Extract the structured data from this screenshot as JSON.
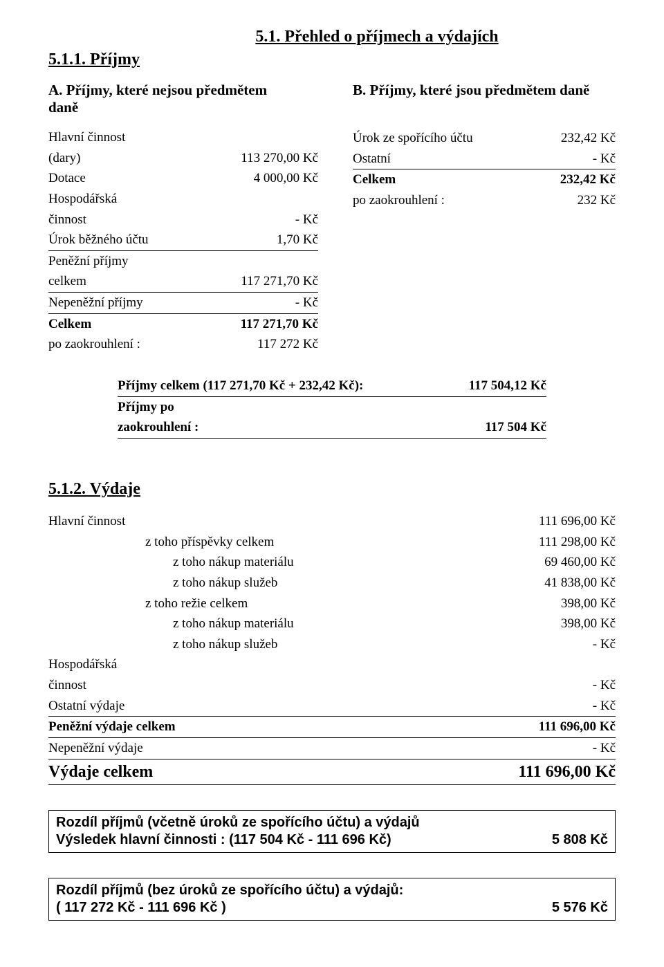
{
  "title": "5.1. Přehled o příjmech a výdajích",
  "prijmy": {
    "heading": "5.1.1. Příjmy",
    "sectionA": {
      "head_line1": "A. Příjmy, které nejsou předmětem",
      "head_line2": "daně",
      "rows": [
        {
          "label": "Hlavní činnost",
          "val": ""
        },
        {
          "label": "(dary)",
          "val": "113 270,00 Kč",
          "underline": false
        },
        {
          "label": "Dotace",
          "val": "4 000,00 Kč",
          "underline": false
        },
        {
          "label": "Hospodářská",
          "val": ""
        },
        {
          "label": "činnost",
          "val": "- Kč",
          "underline": false
        },
        {
          "label": "Úrok běžného účtu",
          "val": "1,70 Kč",
          "underline": true
        },
        {
          "label": "Peněžní příjmy",
          "val": ""
        },
        {
          "label": "celkem",
          "val": "117 271,70 Kč",
          "underline": true
        },
        {
          "label": "Nepeněžní příjmy",
          "val": "- Kč",
          "underline": true
        },
        {
          "label": "Celkem",
          "val": "117 271,70 Kč",
          "bold": true,
          "underline": false
        },
        {
          "label": "po zaokrouhlení :",
          "val": "117 272 Kč",
          "underline": false
        }
      ]
    },
    "sectionB": {
      "head": "B. Příjmy, které jsou předmětem daně",
      "rows": [
        {
          "label": "Úrok ze spořícího účtu",
          "val": "232,42 Kč",
          "underline": false
        },
        {
          "label": "Ostatní",
          "val": "- Kč",
          "underline": true
        },
        {
          "label": "Celkem",
          "val": "232,42 Kč",
          "bold": true,
          "underline": false
        },
        {
          "label": "po zaokrouhlení :",
          "val": "232 Kč",
          "underline": false
        }
      ]
    },
    "totals": [
      {
        "label": "Příjmy celkem (117 271,70 Kč + 232,42 Kč):",
        "val": "117 504,12 Kč",
        "bold": true,
        "underline": true
      },
      {
        "label": "Příjmy po",
        "val": "",
        "bold": true
      },
      {
        "label": "zaokrouhlení :",
        "val": "117 504 Kč",
        "bold": true,
        "underline": true
      }
    ]
  },
  "vydaje": {
    "heading": "5.1.2. Výdaje",
    "rows": [
      {
        "label": "Hlavní činnost",
        "val": "111 696,00 Kč",
        "indent": 0,
        "underline": false
      },
      {
        "label": "z toho příspěvky celkem",
        "val": "111 298,00 Kč",
        "indent": 1,
        "underline": false
      },
      {
        "label": "z toho nákup materiálu",
        "val": "69 460,00 Kč",
        "indent": 2,
        "underline": false
      },
      {
        "label": "z toho nákup služeb",
        "val": "41 838,00 Kč",
        "indent": 2,
        "underline": false
      },
      {
        "label": "z toho režie celkem",
        "val": "398,00 Kč",
        "indent": 1,
        "underline": false
      },
      {
        "label": "z toho nákup materiálu",
        "val": "398,00 Kč",
        "indent": 2,
        "underline": false
      },
      {
        "label": "z toho nákup služeb",
        "val": "- Kč",
        "indent": 2,
        "underline": false
      },
      {
        "label": "Hospodářská",
        "val": "",
        "indent": 0
      },
      {
        "label": "činnost",
        "val": "- Kč",
        "indent": 0,
        "underline": false
      },
      {
        "label": "Ostatní výdaje",
        "val": "- Kč",
        "indent": 0,
        "underline": true
      },
      {
        "label": "Peněžní výdaje celkem",
        "val": "111 696,00 Kč",
        "indent": 0,
        "bold": true,
        "underline": true
      },
      {
        "label": "Nepeněžní výdaje",
        "val": "- Kč",
        "indent": 0,
        "underline": true
      },
      {
        "label": "Výdaje celkem",
        "val": "111 696,00 Kč",
        "indent": 0,
        "big": true,
        "underline": true
      }
    ]
  },
  "box1": {
    "line1": "Rozdíl příjmů (včetně úroků ze spořícího účtu) a výdajů",
    "line2_label": "Výsledek hlavní činnosti :   (117 504 Kč  -  111 696 Kč)",
    "line2_val": "5 808 Kč"
  },
  "box2": {
    "line1": "Rozdíl příjmů (bez úroků ze spořícího účtu) a výdajů:",
    "line2_label": "( 117 272 Kč  -  111 696 Kč )",
    "line2_val": "5 576 Kč"
  }
}
